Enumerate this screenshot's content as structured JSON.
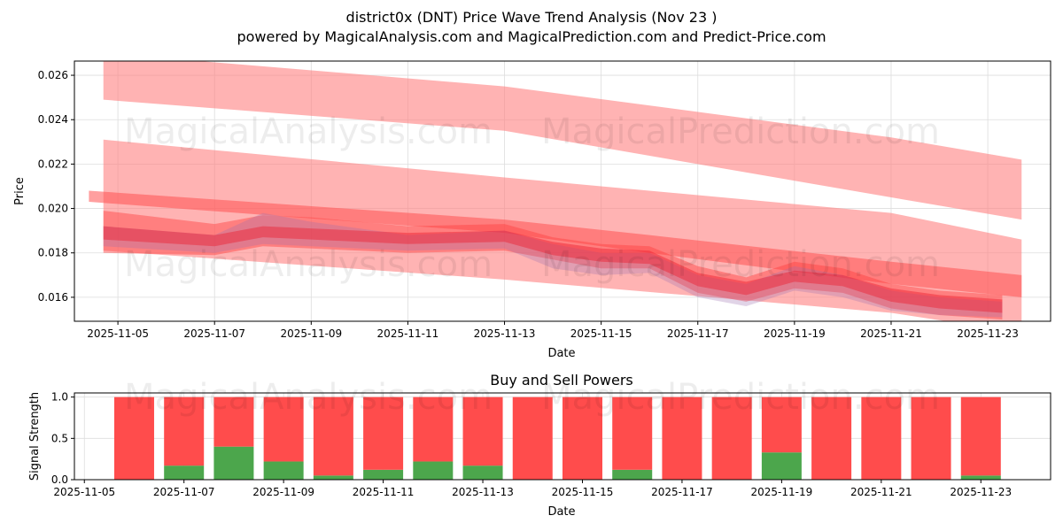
{
  "title": "district0x (DNT) Price Wave Trend Analysis (Nov 23 )",
  "subtitle": "powered by MagicalAnalysis.com and MagicalPrediction.com and Predict-Price.com",
  "watermarks": [
    "MagicalAnalysis.com",
    "MagicalPrediction.com"
  ],
  "chart_data": [
    {
      "type": "area",
      "title": "",
      "xlabel": "Date",
      "ylabel": "Price",
      "x_unit": "day of Nov 2025",
      "xlim": [
        4.1,
        24.3
      ],
      "ylim": [
        0.01492,
        0.02664
      ],
      "grid": true,
      "xticks": [
        5,
        7,
        9,
        11,
        13,
        15,
        17,
        19,
        21,
        23
      ],
      "xtick_labels": [
        "2025-11-05",
        "2025-11-07",
        "2025-11-09",
        "2025-11-11",
        "2025-11-13",
        "2025-11-15",
        "2025-11-17",
        "2025-11-19",
        "2025-11-21",
        "2025-11-23"
      ],
      "yticks": [
        0.016,
        0.018,
        0.02,
        0.022,
        0.024,
        0.026
      ],
      "ytick_labels": [
        "0.016",
        "0.018",
        "0.020",
        "0.022",
        "0.024",
        "0.026"
      ],
      "bands": [
        {
          "name": "wide-band-upper",
          "color": "#ff8080",
          "opacity": 0.6,
          "x": [
            4.7,
            13,
            21,
            23.7
          ],
          "upper": [
            0.027,
            0.0255,
            0.0232,
            0.0222
          ],
          "lower": [
            0.0249,
            0.0235,
            0.0205,
            0.0195
          ]
        },
        {
          "name": "wide-band-middle",
          "color": "#ff8080",
          "opacity": 0.6,
          "x": [
            4.7,
            13,
            21,
            23.7
          ],
          "upper": [
            0.0231,
            0.0214,
            0.0198,
            0.0186
          ],
          "lower": [
            0.0181,
            0.0168,
            0.0153,
            0.0144
          ]
        },
        {
          "name": "narrow-band",
          "color": "#ff5050",
          "opacity": 0.55,
          "x": [
            4.4,
            13,
            16,
            21,
            23.7
          ],
          "upper": [
            0.0208,
            0.0195,
            0.0188,
            0.0176,
            0.017
          ],
          "lower": [
            0.0203,
            0.0189,
            0.018,
            0.0166,
            0.016
          ]
        },
        {
          "name": "wave-band-1",
          "color": "#ff4040",
          "opacity": 0.45,
          "x": [
            4.7,
            7,
            8,
            9,
            11,
            13,
            14,
            15,
            16,
            17,
            18,
            19,
            20,
            21,
            22,
            23.3
          ],
          "upper": [
            0.0199,
            0.0193,
            0.0197,
            0.0196,
            0.0192,
            0.0193,
            0.0187,
            0.0184,
            0.0183,
            0.0174,
            0.0169,
            0.0176,
            0.0173,
            0.0166,
            0.0163,
            0.0161
          ],
          "lower": [
            0.018,
            0.0179,
            0.0183,
            0.0182,
            0.018,
            0.0181,
            0.0177,
            0.0173,
            0.0173,
            0.0162,
            0.0158,
            0.0164,
            0.0162,
            0.0155,
            0.0152,
            0.015
          ]
        },
        {
          "name": "wave-band-2",
          "color": "#9a70b0",
          "opacity": 0.3,
          "x": [
            4.7,
            7,
            8,
            9,
            11,
            13,
            14,
            15,
            16,
            17,
            18,
            19,
            20,
            21,
            22,
            23.3
          ],
          "upper": [
            0.0192,
            0.0188,
            0.0198,
            0.0194,
            0.0188,
            0.019,
            0.0184,
            0.018,
            0.018,
            0.017,
            0.0166,
            0.0174,
            0.017,
            0.0163,
            0.016,
            0.0158
          ],
          "lower": [
            0.0183,
            0.018,
            0.0184,
            0.0183,
            0.0181,
            0.0182,
            0.0173,
            0.017,
            0.0171,
            0.016,
            0.0156,
            0.0163,
            0.016,
            0.0154,
            0.0152,
            0.0151
          ]
        },
        {
          "name": "wave-band-3",
          "color": "#ee2030",
          "opacity": 0.45,
          "x": [
            4.7,
            7,
            8,
            9,
            11,
            13,
            14,
            15,
            16,
            17,
            18,
            19,
            20,
            21,
            22,
            23.3
          ],
          "upper": [
            0.0192,
            0.0188,
            0.0192,
            0.0191,
            0.0189,
            0.019,
            0.0185,
            0.0182,
            0.0181,
            0.0171,
            0.0167,
            0.0172,
            0.017,
            0.0164,
            0.0161,
            0.0159
          ],
          "lower": [
            0.0186,
            0.0183,
            0.0187,
            0.0186,
            0.0184,
            0.0185,
            0.0179,
            0.0176,
            0.0175,
            0.0165,
            0.0161,
            0.0167,
            0.0165,
            0.0158,
            0.0155,
            0.0153
          ]
        }
      ]
    },
    {
      "type": "bar",
      "title": "Buy and Sell Powers",
      "xlabel": "Date",
      "ylabel": "Signal Strength",
      "ylim": [
        0,
        1.05
      ],
      "xlim": [
        4.8,
        24.4
      ],
      "grid": true,
      "yticks": [
        0.0,
        0.5,
        1.0
      ],
      "ytick_labels": [
        "0.0",
        "0.5",
        "1.0"
      ],
      "xticks": [
        5,
        7,
        9,
        11,
        13,
        15,
        17,
        19,
        21,
        23
      ],
      "xtick_labels": [
        "2025-11-05",
        "2025-11-07",
        "2025-11-09",
        "2025-11-11",
        "2025-11-13",
        "2025-11-15",
        "2025-11-17",
        "2025-11-19",
        "2025-11-21",
        "2025-11-23"
      ],
      "days": [
        6,
        7,
        8,
        9,
        10,
        11,
        12,
        13,
        14,
        15,
        16,
        17,
        18,
        19,
        20,
        21,
        22,
        23
      ],
      "series": [
        {
          "name": "Buy",
          "color": "#4ca64c",
          "values": [
            0,
            0.17,
            0.4,
            0.22,
            0.05,
            0.12,
            0.22,
            0.17,
            0,
            0,
            0.12,
            0,
            0,
            0.33,
            0,
            0,
            0,
            0.05
          ]
        },
        {
          "name": "Sell",
          "color": "#ff4c4c",
          "values": [
            1,
            0.83,
            0.6,
            0.78,
            0.95,
            0.88,
            0.78,
            0.83,
            1,
            1,
            0.88,
            1,
            1,
            0.67,
            1,
            1,
            1,
            0.95
          ]
        }
      ]
    }
  ]
}
